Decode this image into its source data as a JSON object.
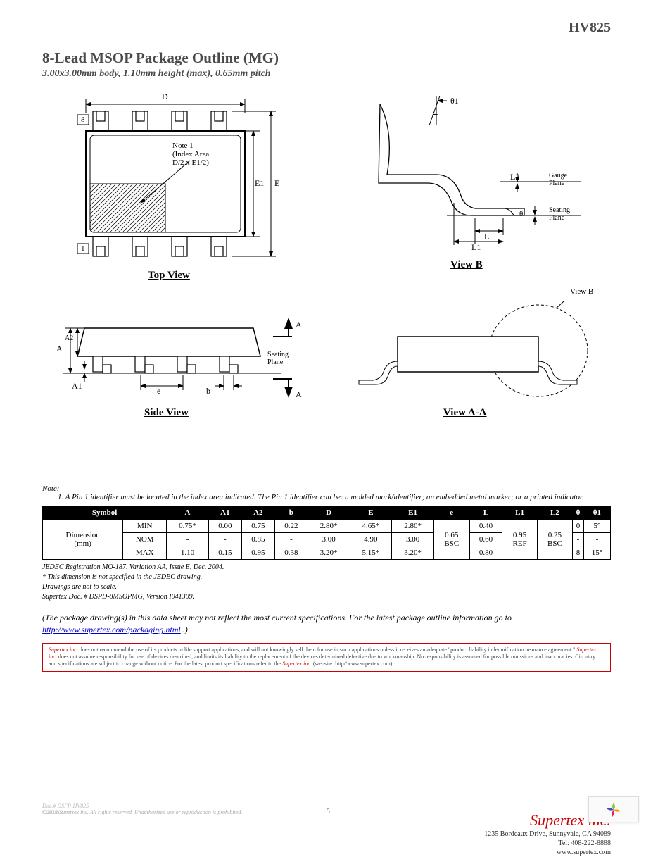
{
  "header": {
    "part_number": "HV825",
    "title": "8-Lead MSOP Package Outline (MG)",
    "subtitle": "3.00x3.00mm body, 1.10mm height (max), 0.65mm pitch"
  },
  "views": {
    "top": {
      "label": "Top View",
      "pin8": "8",
      "pin1": "1",
      "D": "D",
      "E1": "E1",
      "E": "E",
      "note": "Note 1\n(Index Area\nD/2 x E1/2)"
    },
    "side": {
      "label": "Side View",
      "A": "A",
      "A2": "A2",
      "A1": "A1",
      "e": "e",
      "b": "b",
      "seating": "Seating\nPlane",
      "Aarrowtop": "A",
      "Aarrowbot": "A"
    },
    "viewb": {
      "label": "View B",
      "theta1": "θ1",
      "L": "L",
      "L1": "L1",
      "L2": "L2",
      "theta": "θ",
      "gauge": "Gauge\nPlane",
      "seating": "Seating\nPlane"
    },
    "viewaa": {
      "label": "View A-A",
      "viewb_callout": "View B"
    }
  },
  "notes_header": "Note:",
  "note1": "1.  A Pin 1 identifier must be located in the index area indicated. The Pin 1 identifier can be: a molded mark/identifier; an embedded metal marker; or a printed indicator.",
  "table": {
    "headers": [
      "Symbol",
      "A",
      "A1",
      "A2",
      "b",
      "D",
      "E",
      "E1",
      "e",
      "L",
      "L1",
      "L2",
      "θ",
      "θ1"
    ],
    "row_label": "Dimension\n(mm)",
    "rows": [
      {
        "k": "MIN",
        "v": [
          "0.75*",
          "0.00",
          "0.75",
          "0.22",
          "2.80*",
          "4.65*",
          "2.80*",
          "",
          "0.40",
          "",
          "",
          "0",
          "5°"
        ]
      },
      {
        "k": "NOM",
        "v": [
          "-",
          "-",
          "0.85",
          "-",
          "3.00",
          "4.90",
          "3.00",
          "0.65\nBSC",
          "0.60",
          "0.95\nREF",
          "0.25\nBSC",
          "-",
          "-"
        ]
      },
      {
        "k": "MAX",
        "v": [
          "1.10",
          "0.15",
          "0.95",
          "0.38",
          "3.20*",
          "5.15*",
          "3.20*",
          "",
          "0.80",
          "",
          "",
          "8",
          "15°"
        ]
      }
    ]
  },
  "table_notes": [
    "JEDEC Registration MO-187, Variation AA, Issue E, Dec. 2004.",
    "* This dimension is not specified in the JEDEC drawing.",
    "Drawings are not to scale.",
    "Supertex Doc. # DSPD-8MSOPMG, Version I041309."
  ],
  "pkg_note_pre": "(The package drawing(s) in this data sheet may not reflect the most current specifications. For the latest package outline information go to ",
  "pkg_note_link": "http://www.supertex.com/packaging.html",
  "pkg_note_post": ".)",
  "disclaimer": {
    "r1": "Supertex inc.",
    "t1": " does not recommend the use of its products in life support applications, and will not knowingly sell them for use in such applications unless it receives an adequate \"product liability indemnification insurance agreement.\" ",
    "r2": "Supertex inc.",
    "t2": " does not assume responsibility for use of devices described, and limits its liability to the replacement of the devices determined defective due to workmanship. No responsibility is assumed for possible omissions and inaccuracies. Circuitry and specifications are subject to change without notice. For the latest product specifications refer to the ",
    "r3": "Supertex inc.",
    "t3": " (website: http//www.supertex.com)"
  },
  "footer": {
    "copyright": "©2013 Supertex inc.      All rights reserved. Unauthorized use or reproduction is prohibited.",
    "company": "Supertex inc.",
    "addr1": "1235 Bordeaux Drive, Sunnyvale, CA 94089",
    "addr2": "Tel: 408-222-8888",
    "addr3": "www.supertex.com",
    "doc": "Doc.# DSFP-HV825",
    "date": "C072913",
    "page": "5"
  }
}
